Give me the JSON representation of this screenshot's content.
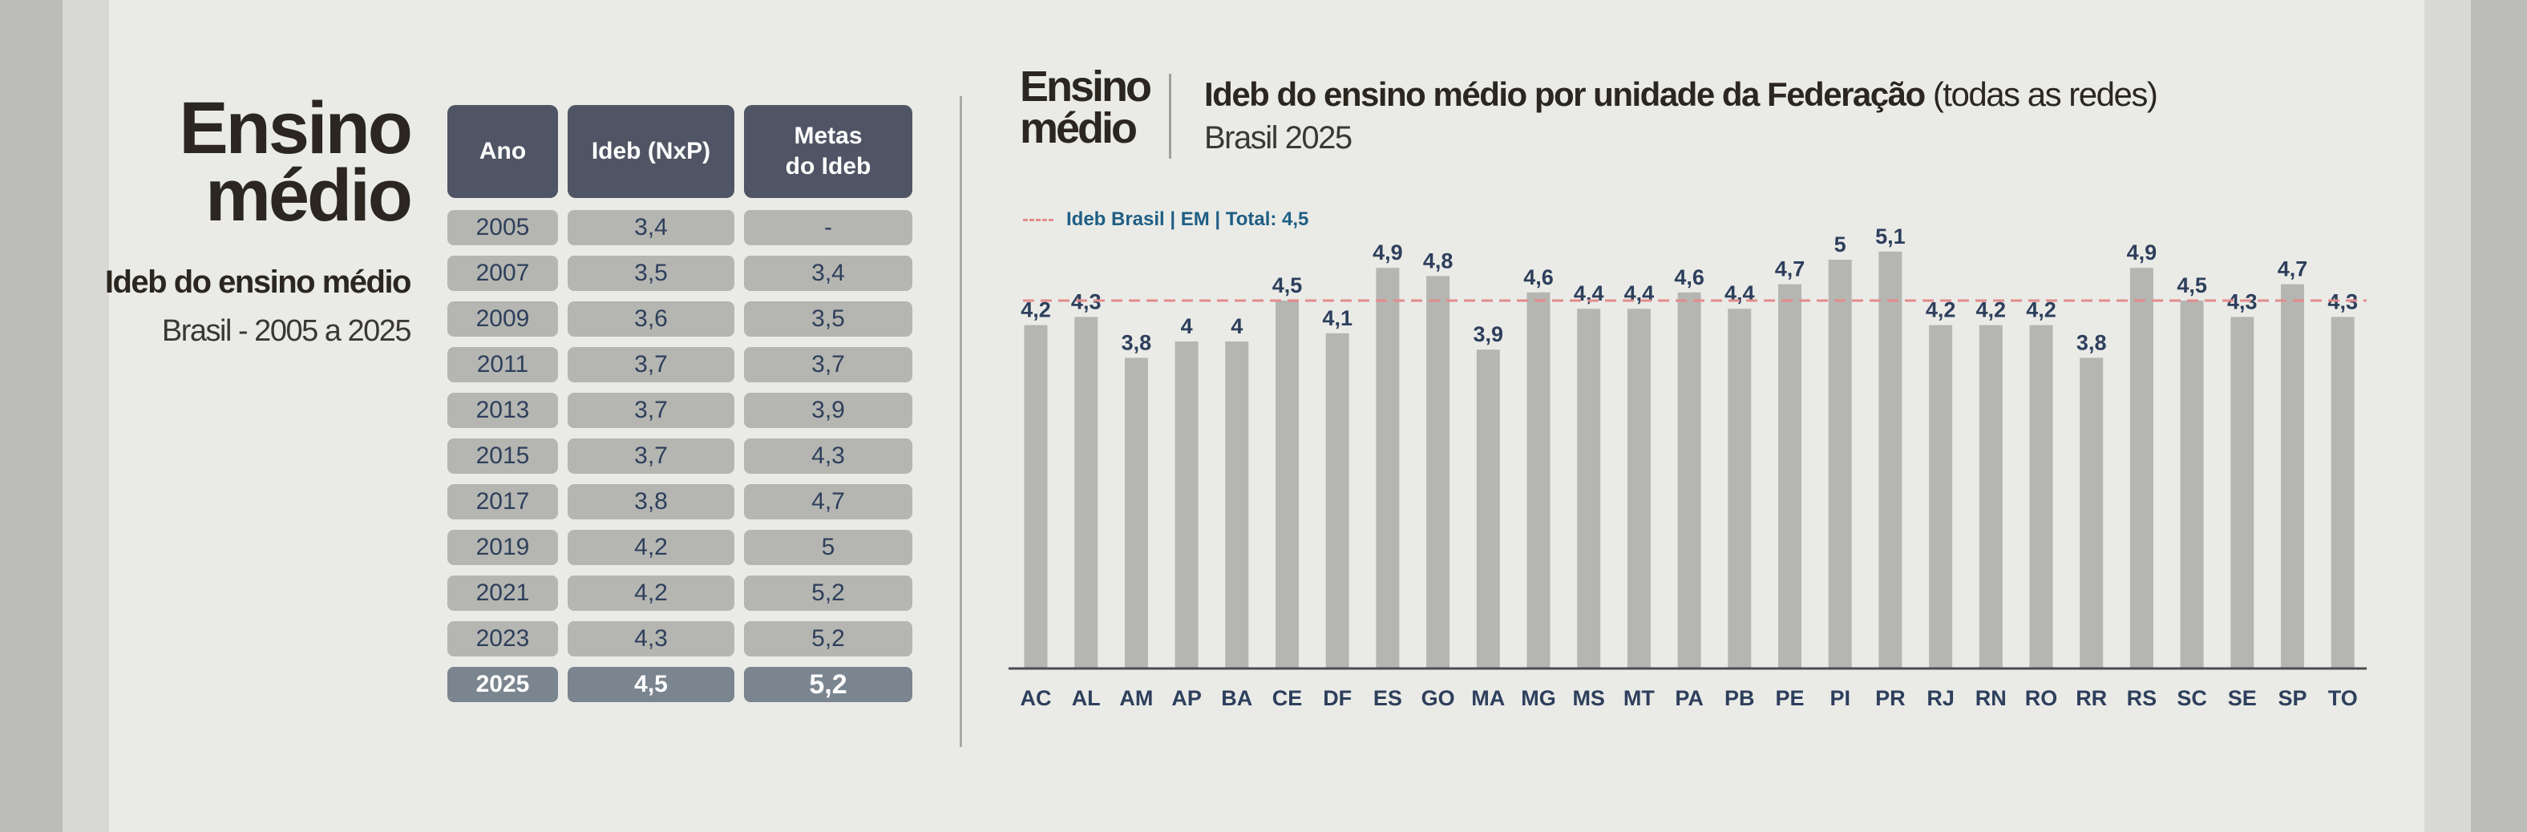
{
  "heading": {
    "title_line1": "Ensino",
    "title_line2": "médio",
    "subtitle": "Ideb do ensino médio",
    "range": "Brasil - 2005 a 2025"
  },
  "table": {
    "headers": {
      "year": "Ano",
      "ideb": "Ideb (NxP)",
      "metas_line1": "Metas",
      "metas_line2": "do Ideb"
    },
    "rows": [
      {
        "year": "2005",
        "ideb": "3,4",
        "meta": "-"
      },
      {
        "year": "2007",
        "ideb": "3,5",
        "meta": "3,4"
      },
      {
        "year": "2009",
        "ideb": "3,6",
        "meta": "3,5"
      },
      {
        "year": "2011",
        "ideb": "3,7",
        "meta": "3,7"
      },
      {
        "year": "2013",
        "ideb": "3,7",
        "meta": "3,9"
      },
      {
        "year": "2015",
        "ideb": "3,7",
        "meta": "4,3"
      },
      {
        "year": "2017",
        "ideb": "3,8",
        "meta": "4,7"
      },
      {
        "year": "2019",
        "ideb": "4,2",
        "meta": "5"
      },
      {
        "year": "2021",
        "ideb": "4,2",
        "meta": "5,2"
      },
      {
        "year": "2023",
        "ideb": "4,3",
        "meta": "5,2"
      },
      {
        "year": "2025",
        "ideb": "4,5",
        "meta": "5,2"
      }
    ]
  },
  "chart_header": {
    "label_line1": "Ensino",
    "label_line2": "médio",
    "title_bold": "Ideb  do ensino médio por unidade da Federação",
    "title_rest": " (todas as redes)",
    "subtitle": "Brasil 2025"
  },
  "chart_data": {
    "type": "bar",
    "title": "Ideb  do ensino médio por unidade da Federação (todas as redes)",
    "subtitle": "Brasil 2025",
    "categories": [
      "AC",
      "AL",
      "AM",
      "AP",
      "BA",
      "CE",
      "DF",
      "ES",
      "GO",
      "MA",
      "MG",
      "MS",
      "MT",
      "PA",
      "PB",
      "PE",
      "PI",
      "PR",
      "RJ",
      "RN",
      "RO",
      "RR",
      "RS",
      "SC",
      "SE",
      "SP",
      "TO"
    ],
    "values": [
      4.2,
      4.3,
      3.8,
      4.0,
      4.0,
      4.5,
      4.1,
      4.9,
      4.8,
      3.9,
      4.6,
      4.4,
      4.4,
      4.6,
      4.4,
      4.7,
      5.0,
      5.1,
      4.2,
      4.2,
      4.2,
      3.8,
      4.9,
      4.5,
      4.3,
      4.7,
      4.3
    ],
    "value_labels": [
      "4,2",
      "4,3",
      "3,8",
      "4",
      "4",
      "4,5",
      "4,1",
      "4,9",
      "4,8",
      "3,9",
      "4,6",
      "4,4",
      "4,4",
      "4,6",
      "4,4",
      "4,7",
      "5",
      "5,1",
      "4,2",
      "4,2",
      "4,2",
      "3,8",
      "4,9",
      "4,5",
      "4,3",
      "4,7",
      "4,3"
    ],
    "reference_line": {
      "value": 4.5,
      "label": "Ideb Brasil | EM | Total: 4,5",
      "color": "#e38b8b"
    },
    "bar_color": "#b5b6b1",
    "label_color": "#2e3f5c",
    "grid": false,
    "legend_position": "top-left"
  }
}
